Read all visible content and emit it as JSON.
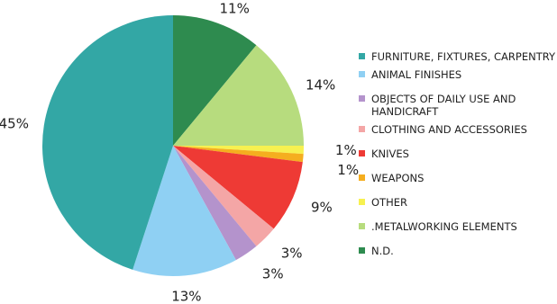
{
  "chart_data": {
    "type": "pie",
    "start_angle_deg": 0,
    "direction": "clockwise",
    "slices": [
      {
        "label": "N.D.",
        "value": 11,
        "value_label": "11%",
        "color": "#2e8b4f"
      },
      {
        "label": ".METALWORKING ELEMENTS",
        "value": 14,
        "value_label": "14%",
        "color": "#b7dc7e"
      },
      {
        "label": "OTHER",
        "value": 1,
        "value_label": "1%",
        "color": "#f7f150"
      },
      {
        "label": "WEAPONS",
        "value": 1,
        "value_label": "1%",
        "color": "#f5ae1f"
      },
      {
        "label": "KNIVES",
        "value": 9,
        "value_label": "9%",
        "color": "#ee3a35"
      },
      {
        "label": "CLOTHING AND ACCESSORIES",
        "value": 3,
        "value_label": "3%",
        "color": "#f4a6a6"
      },
      {
        "label": "OBJECTS OF DAILY USE AND HANDICRAFT",
        "value": 3,
        "value_label": "3%",
        "color": "#b493cc"
      },
      {
        "label": "ANIMAL FINISHES",
        "value": 13,
        "value_label": "13%",
        "color": "#8fd0f3"
      },
      {
        "label": "FURNITURE, FIXTURES, CARPENTRY",
        "value": 45,
        "value_label": "45%",
        "color": "#33a7a5"
      }
    ],
    "legend": {
      "position": "right",
      "items": [
        {
          "label": "FURNITURE, FIXTURES, CARPENTRY",
          "color": "#33a7a5"
        },
        {
          "label": "ANIMAL FINISHES",
          "color": "#8fd0f3"
        },
        {
          "label": "OBJECTS OF DAILY USE AND HANDICRAFT",
          "color": "#b493cc"
        },
        {
          "label": "CLOTHING AND ACCESSORIES",
          "color": "#f4a6a6"
        },
        {
          "label": "KNIVES",
          "color": "#ee3a35"
        },
        {
          "label": "WEAPONS",
          "color": "#f5ae1f"
        },
        {
          "label": "OTHER",
          "color": "#f7f150"
        },
        {
          "label": ".METALWORKING ELEMENTS",
          "color": "#b7dc7e"
        },
        {
          "label": "N.D.",
          "color": "#2e8b4f"
        }
      ]
    }
  }
}
